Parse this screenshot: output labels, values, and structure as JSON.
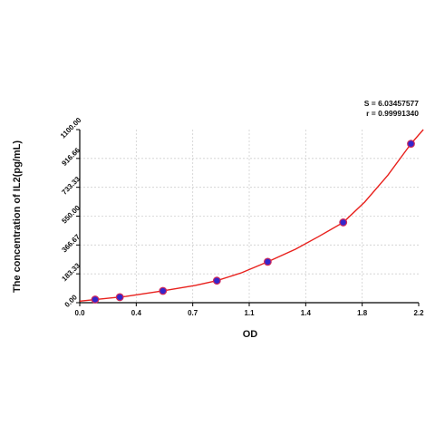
{
  "chart_data": {
    "type": "scatter",
    "xlabel": "OD",
    "ylabel": "The concentration of IL2(pg/mL)",
    "xlim": [
      0.0,
      2.2
    ],
    "ylim": [
      0.0,
      1100.0
    ],
    "x_ticks": [
      "0.0",
      "0.4",
      "0.7",
      "1.1",
      "1.4",
      "1.8",
      "2.2"
    ],
    "y_ticks": [
      "0.00",
      "183.33",
      "366.67",
      "550.00",
      "733.33",
      "916.66",
      "1100.00"
    ],
    "grid": true,
    "stats": {
      "s_label": "S = 6.03457577",
      "r_label": "r = 0.99991340"
    },
    "points": [
      {
        "x": 0.1,
        "y": 20
      },
      {
        "x": 0.26,
        "y": 35
      },
      {
        "x": 0.54,
        "y": 75
      },
      {
        "x": 0.89,
        "y": 140
      },
      {
        "x": 1.22,
        "y": 260
      },
      {
        "x": 1.71,
        "y": 510
      },
      {
        "x": 2.15,
        "y": 1010
      }
    ],
    "fit_line": [
      {
        "x": 0.0,
        "y": 10
      },
      {
        "x": 0.1,
        "y": 20
      },
      {
        "x": 0.3,
        "y": 40
      },
      {
        "x": 0.54,
        "y": 75
      },
      {
        "x": 0.75,
        "y": 110
      },
      {
        "x": 0.89,
        "y": 140
      },
      {
        "x": 1.05,
        "y": 190
      },
      {
        "x": 1.22,
        "y": 260
      },
      {
        "x": 1.4,
        "y": 340
      },
      {
        "x": 1.55,
        "y": 420
      },
      {
        "x": 1.71,
        "y": 510
      },
      {
        "x": 1.85,
        "y": 640
      },
      {
        "x": 2.0,
        "y": 810
      },
      {
        "x": 2.15,
        "y": 1010
      },
      {
        "x": 2.23,
        "y": 1100
      }
    ],
    "colors": {
      "line": "#e8201c",
      "point_fill": "#3326cc",
      "point_edge": "#d0285a",
      "grid": "#cfcfcf",
      "axis": "#000000"
    }
  }
}
